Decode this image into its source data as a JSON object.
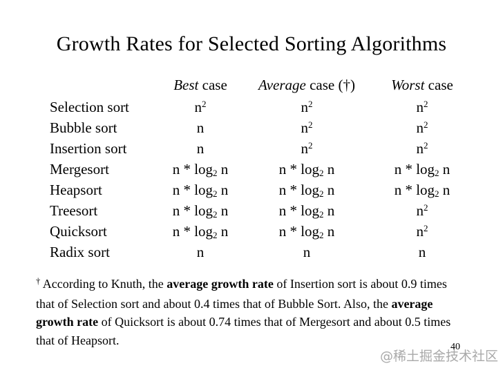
{
  "slide": {
    "title": "Growth Rates for Selected Sorting Algorithms",
    "page_number": "40",
    "watermark": "@稀土掘金技术社区"
  },
  "table": {
    "headers": [
      {
        "segments": [
          {
            "text": "Best",
            "italic": true
          },
          {
            "text": " case"
          }
        ]
      },
      {
        "segments": [
          {
            "text": "Average",
            "italic": true
          },
          {
            "text": " case (†)"
          }
        ]
      },
      {
        "segments": [
          {
            "text": "Worst",
            "italic": true
          },
          {
            "text": " case"
          }
        ]
      }
    ],
    "rows": [
      {
        "label": "Selection sort",
        "best": "n^2",
        "average": "n^2",
        "worst": "n^2"
      },
      {
        "label": "Bubble sort",
        "best": "n",
        "average": "n^2",
        "worst": "n^2"
      },
      {
        "label": "Insertion sort",
        "best": "n",
        "average": "n^2",
        "worst": "n^2"
      },
      {
        "label": "Mergesort",
        "best": "n * log_2 n",
        "average": "n * log_2 n",
        "worst": "n * log_2 n"
      },
      {
        "label": "Heapsort",
        "best": "n * log_2 n",
        "average": "n * log_2 n",
        "worst": "n * log_2 n"
      },
      {
        "label": "Treesort",
        "best": "n * log_2 n",
        "average": "n * log_2 n",
        "worst": "n^2"
      },
      {
        "label": "Quicksort",
        "best": "n * log_2 n",
        "average": "n * log_2 n",
        "worst": "n^2"
      },
      {
        "label": "Radix sort",
        "best": "n",
        "average": "n",
        "worst": "n"
      }
    ]
  },
  "footnote": {
    "segments": [
      {
        "text": "†",
        "sup": true
      },
      {
        "text": " According to Knuth, the "
      },
      {
        "text": "average growth rate",
        "bold": true
      },
      {
        "text": " of Insertion sort is about 0.9 times that of Selection sort and about 0.4 times that of Bubble Sort. Also, the "
      },
      {
        "text": "average growth rate",
        "bold": true
      },
      {
        "text": " of Quicksort is about 0.74 times that of Mergesort and about 0.5 times that of Heapsort."
      }
    ]
  }
}
